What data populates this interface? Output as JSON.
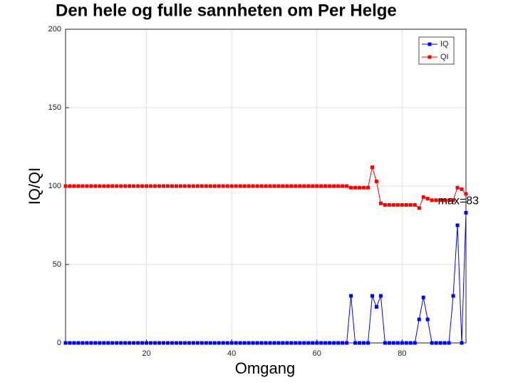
{
  "chart_data": {
    "type": "line",
    "title": "Den hele og fulle sannheten om Per Helge",
    "xlabel": "Omgang",
    "ylabel": "IQ/QI",
    "annotation": "max=83",
    "x": [
      1,
      2,
      3,
      4,
      5,
      6,
      7,
      8,
      9,
      10,
      11,
      12,
      13,
      14,
      15,
      16,
      17,
      18,
      19,
      20,
      21,
      22,
      23,
      24,
      25,
      26,
      27,
      28,
      29,
      30,
      31,
      32,
      33,
      34,
      35,
      36,
      37,
      38,
      39,
      40,
      41,
      42,
      43,
      44,
      45,
      46,
      47,
      48,
      49,
      50,
      51,
      52,
      53,
      54,
      55,
      56,
      57,
      58,
      59,
      60,
      61,
      62,
      63,
      64,
      65,
      66,
      67,
      68,
      69,
      70,
      71,
      72,
      73,
      74,
      75,
      76,
      77,
      78,
      79,
      80,
      81,
      82,
      83,
      84,
      85,
      86,
      87,
      88,
      89,
      90,
      91,
      92,
      93,
      94,
      95
    ],
    "series": [
      {
        "name": "IQ",
        "color": "#0000ff",
        "values": [
          0,
          0,
          0,
          0,
          0,
          0,
          0,
          0,
          0,
          0,
          0,
          0,
          0,
          0,
          0,
          0,
          0,
          0,
          0,
          0,
          0,
          0,
          0,
          0,
          0,
          0,
          0,
          0,
          0,
          0,
          0,
          0,
          0,
          0,
          0,
          0,
          0,
          0,
          0,
          0,
          0,
          0,
          0,
          0,
          0,
          0,
          0,
          0,
          0,
          0,
          0,
          0,
          0,
          0,
          0,
          0,
          0,
          0,
          0,
          0,
          0,
          0,
          0,
          0,
          0,
          0,
          0,
          30,
          0,
          0,
          0,
          0,
          30,
          23,
          30,
          0,
          0,
          0,
          0,
          0,
          0,
          0,
          0,
          15,
          29,
          15,
          0,
          0,
          0,
          0,
          0,
          30,
          75,
          0,
          83
        ]
      },
      {
        "name": "QI",
        "color": "#ff0000",
        "values": [
          100,
          100,
          100,
          100,
          100,
          100,
          100,
          100,
          100,
          100,
          100,
          100,
          100,
          100,
          100,
          100,
          100,
          100,
          100,
          100,
          100,
          100,
          100,
          100,
          100,
          100,
          100,
          100,
          100,
          100,
          100,
          100,
          100,
          100,
          100,
          100,
          100,
          100,
          100,
          100,
          100,
          100,
          100,
          100,
          100,
          100,
          100,
          100,
          100,
          100,
          100,
          100,
          100,
          100,
          100,
          100,
          100,
          100,
          100,
          100,
          100,
          100,
          100,
          100,
          100,
          100,
          100,
          99,
          99,
          99,
          99,
          99,
          112,
          103,
          89,
          88,
          88,
          88,
          88,
          88,
          88,
          88,
          88,
          86,
          93,
          92,
          91,
          91,
          91,
          91,
          91,
          91,
          99,
          98,
          95
        ]
      }
    ],
    "xlim": [
      1,
      95
    ],
    "ylim": [
      0,
      200
    ],
    "xticks": [
      20,
      40,
      60,
      80
    ],
    "yticks": [
      0,
      50,
      100,
      150,
      200
    ],
    "grid": true,
    "legend": "top-right"
  }
}
